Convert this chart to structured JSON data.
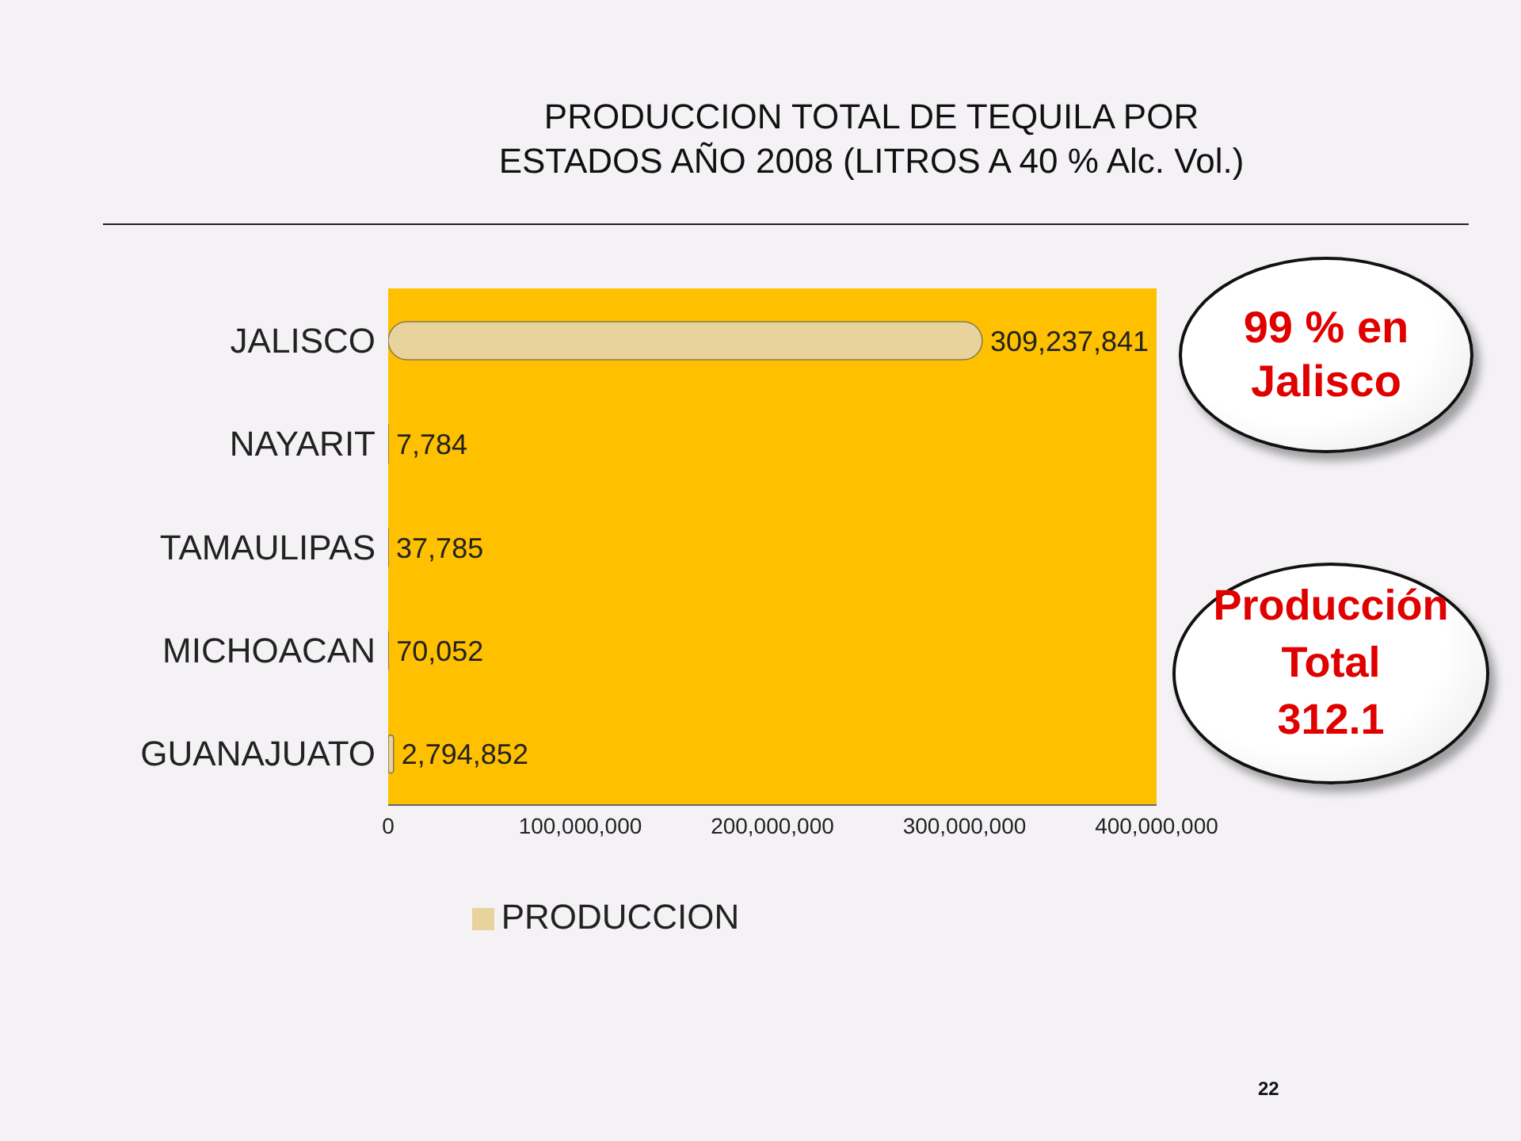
{
  "chart_data": {
    "type": "bar",
    "orientation": "horizontal",
    "title": "PRODUCCION TOTAL DE TEQUILA POR\nESTADOS AÑO 2008 (LITROS A 40 % Alc. Vol.)",
    "categories": [
      "JALISCO",
      "NAYARIT",
      "TAMAULIPAS",
      "MICHOACAN",
      "GUANAJUATO"
    ],
    "series": [
      {
        "name": "PRODUCCION",
        "color": "#e8d39c",
        "values": [
          309237841,
          7784,
          37785,
          70052,
          2794852
        ],
        "value_labels": [
          "309,237,841",
          "7,784",
          "37,785",
          "70,052",
          "2,794,852"
        ]
      }
    ],
    "xlim": [
      0,
      400000000
    ],
    "xticks": [
      {
        "value": 0,
        "label": "0"
      },
      {
        "value": 100000000,
        "label": "100,000,000"
      },
      {
        "value": 200000000,
        "label": "200,000,000"
      },
      {
        "value": 300000000,
        "label": "300,000,000"
      },
      {
        "value": 400000000,
        "label": "400,000,000"
      }
    ],
    "legend": "bottom",
    "annotations": [
      "99 % en\nJalisco",
      "Producción\nTotal\n312.1",
      "22"
    ]
  }
}
